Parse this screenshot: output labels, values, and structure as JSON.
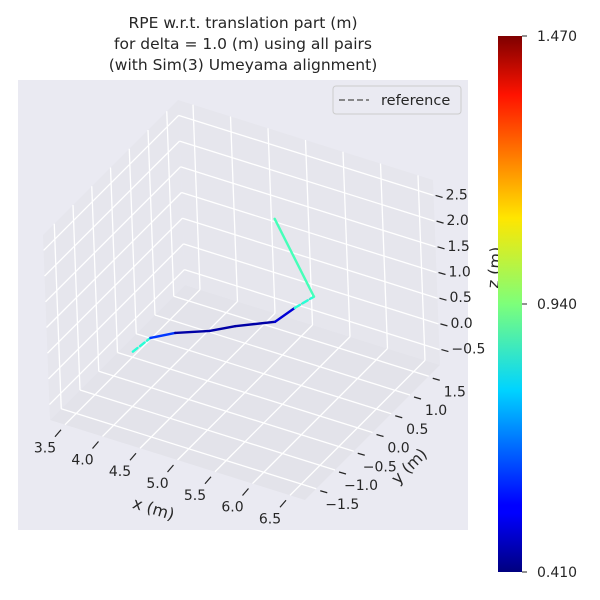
{
  "chart_data": {
    "type": "line",
    "projection": "3d",
    "title_lines": [
      "RPE w.r.t. translation part (m)",
      "for delta = 1.0 (m) using all pairs",
      "(with Sim(3) Umeyama alignment)"
    ],
    "xlabel": "x (m)",
    "ylabel": "y (m)",
    "zlabel": "z (m)",
    "xlim": [
      3.3,
      6.7
    ],
    "ylim": [
      -1.8,
      1.8
    ],
    "zlim": [
      -0.8,
      2.8
    ],
    "xticks": [
      "3.5",
      "4.0",
      "4.5",
      "5.0",
      "5.5",
      "6.0",
      "6.5"
    ],
    "yticks": [
      "−1.5",
      "−1.0",
      "−0.5",
      "0.0",
      "0.5",
      "1.0",
      "1.5"
    ],
    "zticks": [
      "−0.5",
      "0.0",
      "0.5",
      "1.0",
      "1.5",
      "2.0",
      "2.5"
    ],
    "grid": true,
    "legend": {
      "position": "top-right",
      "entries": [
        "reference"
      ]
    },
    "reference": {
      "name": "reference",
      "color": "#666666",
      "style": "dashed",
      "x": [
        3.88,
        3.92,
        4.12,
        4.45,
        4.66,
        5.02,
        5.08,
        5.16,
        4.67
      ],
      "y": [
        -0.71,
        -0.32,
        -0.06,
        0.2,
        0.46,
        0.8,
        1.21,
        1.56,
        1.56
      ],
      "z": [
        0,
        0,
        0,
        0,
        0,
        0,
        0,
        0,
        1.29
      ]
    },
    "segment_errors": [
      0.85,
      0.6,
      0.45,
      0.45,
      0.45,
      0.5,
      0.85,
      0.88,
      1.47
    ],
    "colormap": "jet",
    "colorbar": {
      "min": 0.41,
      "max": 1.47,
      "ticks": [
        "1.470",
        "0.940",
        "0.410"
      ]
    }
  }
}
